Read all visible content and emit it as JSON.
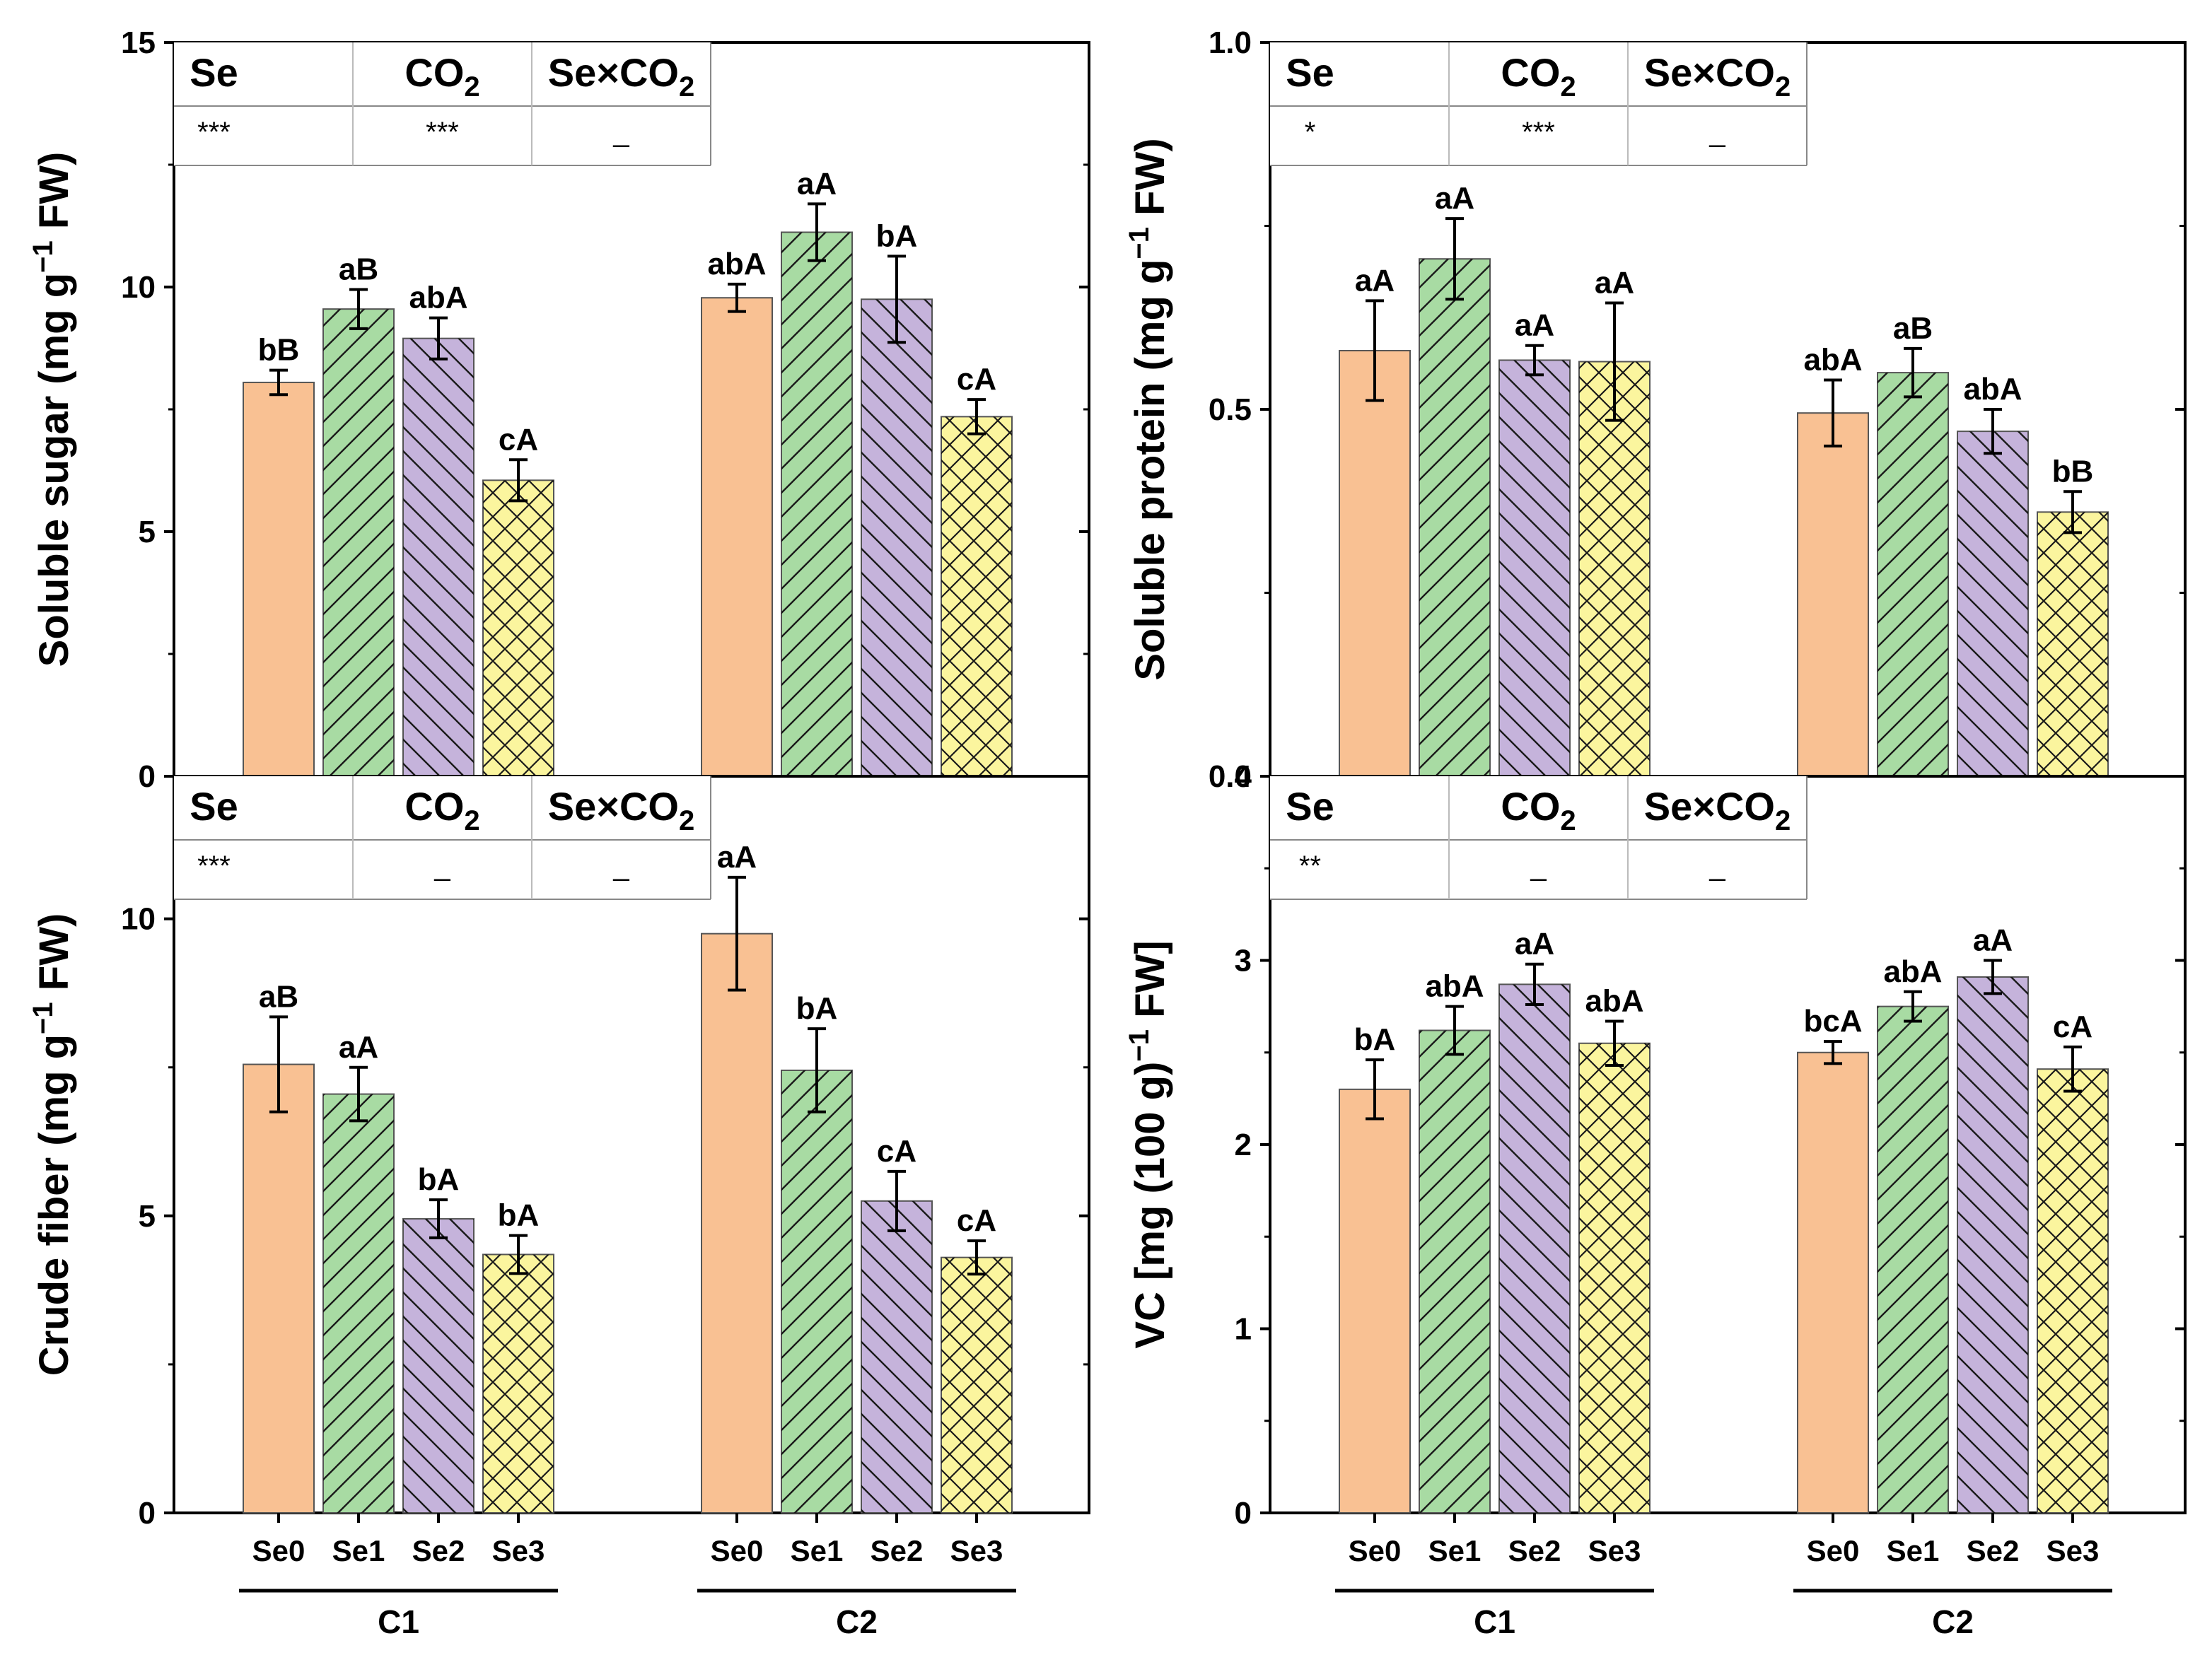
{
  "legend": {
    "treatments": [
      "Se0",
      "Se1",
      "Se2",
      "Se3"
    ],
    "colors": [
      "#F9C193",
      "#A8DBA3",
      "#C5B3DB",
      "#FBF59E"
    ],
    "patterns": [
      "none",
      "diagonal-up",
      "diagonal-down",
      "crosshatch"
    ]
  },
  "groups": [
    "C1",
    "C2"
  ],
  "chart_data": [
    {
      "type": "bar",
      "panel": "top-left",
      "ylabel_main": "Soluble sugar (mg g",
      "ylabel_sup": "−1",
      "ylabel_end": " FW)",
      "ylim": [
        0,
        15
      ],
      "yticks": [
        0,
        5,
        10,
        15
      ],
      "ytick_labels": [
        "0",
        "5",
        "10",
        "15"
      ],
      "categories": [
        "Se0",
        "Se1",
        "Se2",
        "Se3"
      ],
      "groups": [
        "C1",
        "C2"
      ],
      "series": [
        {
          "name": "C1",
          "values": [
            8.05,
            9.55,
            8.95,
            6.05
          ],
          "errors": [
            0.25,
            0.4,
            0.42,
            0.42
          ],
          "labels": [
            "bB",
            "aB",
            "abA",
            "cA"
          ]
        },
        {
          "name": "C2",
          "values": [
            9.78,
            11.12,
            9.75,
            7.35
          ],
          "errors": [
            0.28,
            0.58,
            0.88,
            0.35
          ],
          "labels": [
            "abA",
            "aA",
            "bA",
            "cA"
          ]
        }
      ],
      "stats": {
        "headers": [
          {
            "main": "Se",
            "sub": ""
          },
          {
            "main": "CO",
            "sub": "2"
          },
          {
            "main": "Se×CO",
            "sub": "2"
          }
        ],
        "values": [
          "***",
          "***",
          "_"
        ]
      }
    },
    {
      "type": "bar",
      "panel": "top-right",
      "ylabel_main": "Soluble protein (mg g",
      "ylabel_sup": "−1",
      "ylabel_end": " FW)",
      "ylim": [
        0,
        1.0
      ],
      "yticks": [
        0,
        0.5,
        1.0
      ],
      "ytick_labels": [
        "0.0",
        "0.5",
        "1.0"
      ],
      "categories": [
        "Se0",
        "Se1",
        "Se2",
        "Se3"
      ],
      "groups": [
        "C1",
        "C2"
      ],
      "series": [
        {
          "name": "C1",
          "values": [
            0.58,
            0.705,
            0.567,
            0.565
          ],
          "errors": [
            0.068,
            0.055,
            0.02,
            0.08
          ],
          "labels": [
            "aA",
            "aA",
            "aA",
            "aA"
          ]
        },
        {
          "name": "C2",
          "values": [
            0.495,
            0.55,
            0.47,
            0.36
          ],
          "errors": [
            0.045,
            0.033,
            0.03,
            0.028
          ],
          "labels": [
            "abA",
            "aB",
            "abA",
            "bB"
          ]
        }
      ],
      "stats": {
        "headers": [
          {
            "main": "Se",
            "sub": ""
          },
          {
            "main": "CO",
            "sub": "2"
          },
          {
            "main": "Se×CO",
            "sub": "2"
          }
        ],
        "values": [
          "*",
          "***",
          "_"
        ]
      }
    },
    {
      "type": "bar",
      "panel": "bottom-left",
      "ylabel_main": "Crude fiber (mg g",
      "ylabel_sup": "−1",
      "ylabel_end": " FW)",
      "ylim": [
        0,
        12.4
      ],
      "yticks": [
        0,
        5,
        10
      ],
      "ytick_labels": [
        "0",
        "5",
        "10"
      ],
      "categories": [
        "Se0",
        "Se1",
        "Se2",
        "Se3"
      ],
      "groups": [
        "C1",
        "C2"
      ],
      "series": [
        {
          "name": "C1",
          "values": [
            7.55,
            7.05,
            4.95,
            4.35
          ],
          "errors": [
            0.8,
            0.45,
            0.32,
            0.32
          ],
          "labels": [
            "aB",
            "aA",
            "bA",
            "bA"
          ]
        },
        {
          "name": "C2",
          "values": [
            9.75,
            7.45,
            5.25,
            4.3
          ],
          "errors": [
            0.95,
            0.7,
            0.5,
            0.28
          ],
          "labels": [
            "aA",
            "bA",
            "cA",
            "cA"
          ]
        }
      ],
      "stats": {
        "headers": [
          {
            "main": "Se",
            "sub": ""
          },
          {
            "main": "CO",
            "sub": "2"
          },
          {
            "main": "Se×CO",
            "sub": "2"
          }
        ],
        "values": [
          "***",
          "_",
          "_"
        ]
      }
    },
    {
      "type": "bar",
      "panel": "bottom-right",
      "ylabel_main": "VC [mg (100 g)",
      "ylabel_sup": "−1",
      "ylabel_end": " FW]",
      "ylim": [
        0,
        4.0
      ],
      "yticks": [
        0,
        1,
        2,
        3,
        4
      ],
      "ytick_labels": [
        "0",
        "1",
        "2",
        "3",
        "4"
      ],
      "categories": [
        "Se0",
        "Se1",
        "Se2",
        "Se3"
      ],
      "groups": [
        "C1",
        "C2"
      ],
      "series": [
        {
          "name": "C1",
          "values": [
            2.3,
            2.62,
            2.87,
            2.55
          ],
          "errors": [
            0.16,
            0.13,
            0.11,
            0.12
          ],
          "labels": [
            "bA",
            "abA",
            "aA",
            "abA"
          ]
        },
        {
          "name": "C2",
          "values": [
            2.5,
            2.75,
            2.91,
            2.41
          ],
          "errors": [
            0.06,
            0.08,
            0.09,
            0.12
          ],
          "labels": [
            "bcA",
            "abA",
            "aA",
            "cA"
          ]
        }
      ],
      "stats": {
        "headers": [
          {
            "main": "Se",
            "sub": ""
          },
          {
            "main": "CO",
            "sub": "2"
          },
          {
            "main": "Se×CO",
            "sub": "2"
          }
        ],
        "values": [
          "**",
          "_",
          "_"
        ]
      }
    }
  ]
}
